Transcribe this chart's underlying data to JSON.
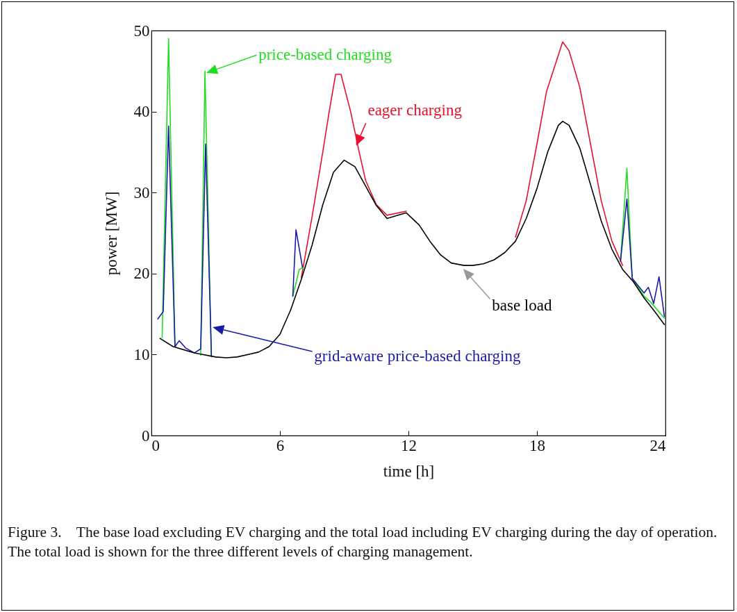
{
  "chart_data": {
    "type": "line",
    "xlabel": "time  [h]",
    "ylabel": "power  [MW]",
    "xlim": [
      0,
      24
    ],
    "xticks": [
      0,
      6,
      12,
      18,
      24
    ],
    "ylim": [
      0,
      50
    ],
    "yticks": [
      0,
      10,
      20,
      30,
      40,
      50
    ],
    "grid": false,
    "annotations": [
      "Figure 3.    The base load excluding EV charging and the total load including EV charging during the day of operation. The total load is shown for the three different levels of charging management."
    ],
    "series": [
      {
        "name": "eager charging",
        "color": "#e8102a",
        "x": [
          7,
          7.5,
          8,
          8.3,
          8.6,
          8.85,
          9.3,
          9.7,
          10,
          10.5,
          11,
          11.9,
          14,
          17,
          17.5,
          18,
          18.45,
          19.2,
          19.5,
          20,
          20.5,
          21,
          21.5,
          22
        ],
        "values": [
          19.5,
          27,
          35,
          40,
          44.6,
          44.6,
          40,
          35,
          31.5,
          28.5,
          27.2,
          27.7,
          null,
          24.5,
          29,
          36,
          42.5,
          48.6,
          47.5,
          43,
          36,
          29,
          24,
          21
        ]
      },
      {
        "name": "price-based charging",
        "color": "#22dd22",
        "x": [
          0.5,
          0.8,
          1.1,
          1.7,
          2.3,
          2.5,
          2.8,
          4.5,
          6.6,
          6.9,
          7.1,
          14,
          21.9,
          22.2,
          22.45,
          23,
          23.3,
          23.95
        ],
        "values": [
          12.1,
          49,
          11.0,
          null,
          9.9,
          45,
          9.7,
          null,
          17.2,
          20.5,
          20.8,
          null,
          21.5,
          33,
          19.4,
          17.2,
          16.5,
          14.5
        ]
      },
      {
        "name": "grid-aware price-based charging",
        "color": "#1a1aa8",
        "x": [
          0.3,
          0.55,
          0.8,
          1.1,
          1.3,
          1.6,
          2,
          2.3,
          2.53,
          2.8,
          4.5,
          6.6,
          6.75,
          7.05,
          14,
          21.9,
          22.2,
          22.45,
          23,
          23.2,
          23.45,
          23.7,
          23.95
        ],
        "values": [
          14.4,
          15.3,
          38.2,
          11.0,
          11.7,
          10.8,
          10.2,
          10.7,
          36.0,
          9.9,
          null,
          17.2,
          25.4,
          20.8,
          null,
          21.5,
          29.2,
          19.4,
          17.6,
          18.3,
          16.3,
          19.6,
          14.7
        ]
      },
      {
        "name": "base load",
        "color": "#000000",
        "x": [
          0.4,
          1,
          2,
          3,
          3.5,
          4,
          5,
          5.5,
          6,
          6.5,
          7,
          7.5,
          8,
          8.5,
          9,
          9.5,
          10,
          10.5,
          11,
          11.9,
          12.5,
          13,
          13.5,
          14,
          14.6,
          15,
          15.5,
          16,
          16.5,
          17,
          17.5,
          18,
          18.5,
          19,
          19.2,
          19.5,
          20,
          20.5,
          21,
          21.5,
          22,
          22.5,
          23,
          23.5,
          23.95
        ],
        "values": [
          12.0,
          11.0,
          10.2,
          9.7,
          9.6,
          9.7,
          10.3,
          11.0,
          12.5,
          15.5,
          19.3,
          23.5,
          28.5,
          32.5,
          34.0,
          33.2,
          30.8,
          28.4,
          26.8,
          27.5,
          26.0,
          24.0,
          22.3,
          21.3,
          21.0,
          21.0,
          21.2,
          21.7,
          22.6,
          24.0,
          26.8,
          30.5,
          35.0,
          38.3,
          38.8,
          38.3,
          35.5,
          31.0,
          26.5,
          23.0,
          20.5,
          19.0,
          17.0,
          15.3,
          13.7
        ]
      }
    ]
  }
}
